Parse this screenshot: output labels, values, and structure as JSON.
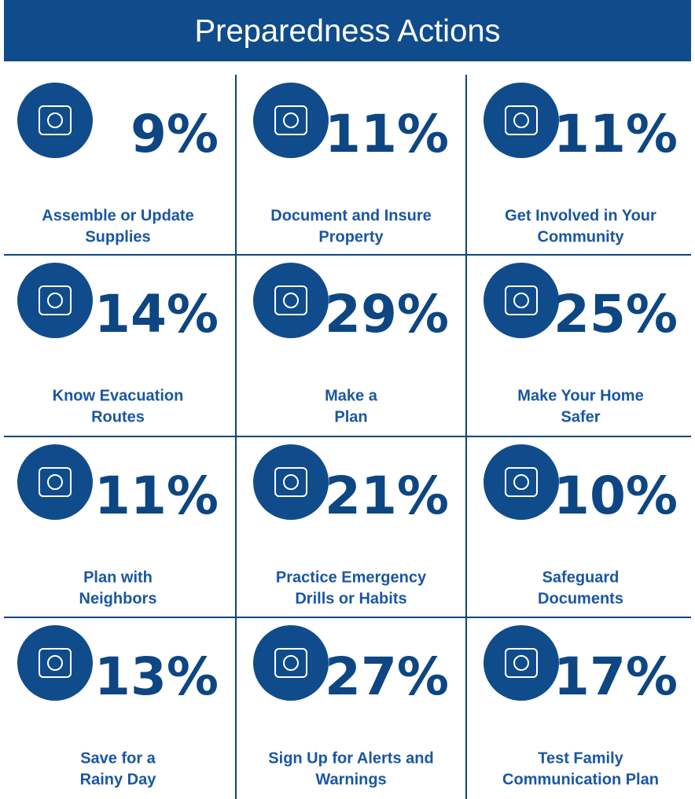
{
  "header": {
    "title": "Preparedness Actions"
  },
  "items": [
    {
      "value": "9%",
      "label": [
        "Assemble or Update",
        "Supplies"
      ]
    },
    {
      "value": "11%",
      "label": [
        "Document and Insure",
        "Property"
      ]
    },
    {
      "value": "11%",
      "label": [
        "Get Involved in Your",
        "Community"
      ]
    },
    {
      "value": "14%",
      "label": [
        "Know Evacuation",
        "Routes"
      ]
    },
    {
      "value": "29%",
      "label": [
        "Make a",
        "Plan"
      ]
    },
    {
      "value": "25%",
      "label": [
        "Make Your Home",
        "Safer"
      ]
    },
    {
      "value": "11%",
      "label": [
        "Plan with",
        "Neighbors"
      ]
    },
    {
      "value": "21%",
      "label": [
        "Practice Emergency",
        "Drills or Habits"
      ]
    },
    {
      "value": "10%",
      "label": [
        "Safeguard",
        "Documents"
      ]
    },
    {
      "value": "13%",
      "label": [
        "Save for a",
        "Rainy Day"
      ]
    },
    {
      "value": "27%",
      "label": [
        "Sign Up for Alerts and",
        "Warnings"
      ]
    },
    {
      "value": "17%",
      "label": [
        "Test Family",
        "Communication Plan"
      ]
    }
  ]
}
